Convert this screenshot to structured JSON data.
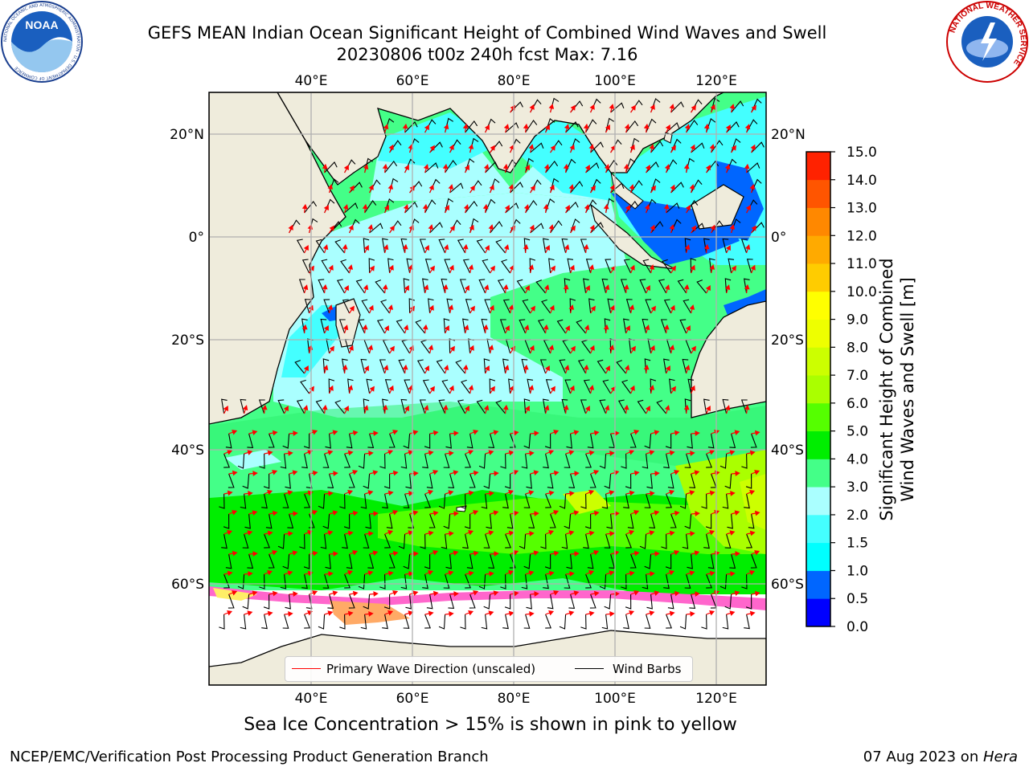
{
  "header": {
    "title_line1": "GEFS MEAN Indian Ocean Significant Height of Combined Wind Waves and Swell",
    "title_line2": "20230806 t00z 240h fcst   Max: 7.16"
  },
  "logos": {
    "noaa_text": "NOAA",
    "noaa_ring_text": "NATIONAL OCEANIC AND ATMOSPHERIC ADMINISTRATION · U.S. DEPARTMENT OF COMMERCE",
    "nws_ring_text": "NATIONAL WEATHER SERVICE"
  },
  "map": {
    "lon_ticks": [
      "40°E",
      "60°E",
      "80°E",
      "100°E",
      "120°E"
    ],
    "lat_ticks": [
      "20°N",
      "0°",
      "20°S",
      "40°S",
      "60°S"
    ],
    "land_color": "#efecdc",
    "legend": {
      "wave_label": "Primary Wave Direction (unscaled)",
      "wave_color": "#ff0000",
      "barb_label": "Wind Barbs",
      "barb_color": "#000000"
    }
  },
  "colorbar": {
    "label_line1": "Significant Height of Combined",
    "label_line2": "Wind Waves and Swell [m]",
    "ticks": [
      "0.0",
      "0.5",
      "1.0",
      "1.5",
      "2.0",
      "3.0",
      "4.0",
      "5.0",
      "6.0",
      "7.0",
      "8.0",
      "9.0",
      "10.0",
      "11.0",
      "12.0",
      "13.0",
      "14.0",
      "15.0"
    ],
    "colors": [
      "#0000ff",
      "#0066ff",
      "#00ffff",
      "#44ffff",
      "#aaffff",
      "#44ff88",
      "#00ee00",
      "#55ff00",
      "#aaff00",
      "#ccff00",
      "#eeff00",
      "#ffff00",
      "#ffcc00",
      "#ffaa00",
      "#ff8800",
      "#ff5500",
      "#ff2200"
    ]
  },
  "footer": {
    "note": "Sea Ice Concentration > 15% is shown in pink to yellow",
    "credit_left": "NCEP/EMC/Verification Post Processing Product Generation Branch",
    "credit_right_date": "07 Aug 2023 on ",
    "credit_right_host": "Hera"
  }
}
